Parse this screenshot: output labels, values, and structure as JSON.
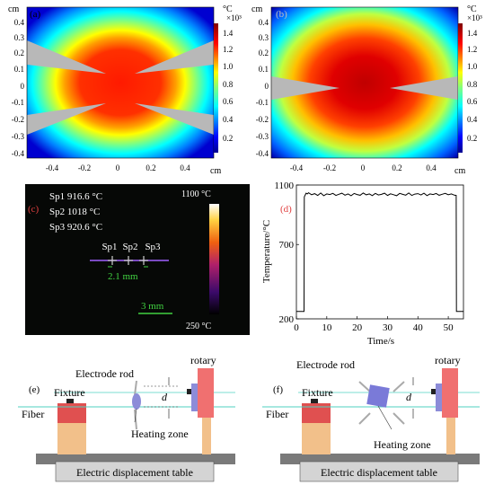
{
  "panel_a": {
    "tag": "(a)",
    "unit_y": "cm",
    "unit_x": "cm",
    "yticks": [
      "0.4",
      "0.3",
      "0.2",
      "0.1",
      "0",
      "-0.1",
      "-0.2",
      "-0.3",
      "-0.4"
    ],
    "xticks": [
      "-0.4",
      "-0.2",
      "0",
      "0.2",
      "0.4"
    ],
    "cbar_unit": "°C",
    "cbar_scale": "×10³",
    "cbar_ticks": [
      "1.4",
      "1.2",
      "1.0",
      "0.8",
      "0.6",
      "0.4",
      "0.2"
    ]
  },
  "panel_b": {
    "tag": "(b)",
    "unit_y": "cm",
    "unit_x": "cm",
    "yticks": [
      "0.4",
      "0.3",
      "0.2",
      "0.1",
      "0",
      "-0.1",
      "-0.2",
      "-0.3",
      "-0.4"
    ],
    "xticks": [
      "-0.4",
      "-0.2",
      "0",
      "0.2",
      "0.4"
    ],
    "cbar_unit": "°C",
    "cbar_scale": "×10³",
    "cbar_ticks": [
      "1.4",
      "1.2",
      "1.0",
      "0.8",
      "0.6",
      "0.4",
      "0.2"
    ]
  },
  "panel_c": {
    "tag": "(c)",
    "readings": [
      "Sp1 916.6 °C",
      "Sp2 1018 °C",
      "Sp3 920.6 °C"
    ],
    "spots": [
      "Sp1",
      "Sp2",
      "Sp3"
    ],
    "spot_distance": "2.1 mm",
    "scalebar": "3 mm",
    "cbar_max": "1100 °C",
    "cbar_min": "250 °C"
  },
  "panel_d": {
    "tag": "(d)",
    "chart_data": {
      "type": "line",
      "xlabel": "Time/s",
      "ylabel": "Temperature/°C",
      "xlim": [
        0,
        55
      ],
      "ylim": [
        200,
        1100
      ],
      "xticks": [
        0,
        10,
        20,
        30,
        40,
        50
      ],
      "yticks": [
        200,
        700,
        1100
      ],
      "x": [
        0,
        2.5,
        2.6,
        3.2,
        3.6,
        4,
        5,
        6,
        7,
        8,
        9,
        10,
        11,
        12,
        13,
        14,
        15,
        16,
        17,
        18,
        19,
        20,
        21,
        22,
        23,
        24,
        25,
        26,
        27,
        28,
        29,
        30,
        31,
        32,
        33,
        34,
        35,
        36,
        37,
        38,
        39,
        40,
        41,
        42,
        43,
        44,
        45,
        46,
        47,
        48,
        49,
        50,
        51,
        52,
        52.6,
        52.7,
        55
      ],
      "y": [
        250,
        250,
        1020,
        1045,
        1040,
        1048,
        1035,
        1042,
        1030,
        1046,
        1028,
        1040,
        1036,
        1044,
        1030,
        1038,
        1045,
        1032,
        1040,
        1028,
        1043,
        1036,
        1031,
        1046,
        1034,
        1040,
        1029,
        1044,
        1033,
        1037,
        1045,
        1030,
        1041,
        1035,
        1028,
        1044,
        1037,
        1032,
        1046,
        1030,
        1039,
        1042,
        1033,
        1045,
        1029,
        1040,
        1036,
        1043,
        1031,
        1038,
        1044,
        1035,
        1040,
        1032,
        1030,
        250,
        250
      ]
    }
  },
  "panel_e": {
    "tag": "(e)",
    "electrode_label": "Electrode rod",
    "fixture_label": "Fixture",
    "fiber_label": "Fiber",
    "heating_label": "Heating zone",
    "rotary_label": "rotary",
    "d_label": "d",
    "table_label": "Electric displacement table"
  },
  "panel_f": {
    "tag": "(f)",
    "electrode_label": "Electrode rod",
    "fixture_label": "Fixture",
    "fiber_label": "Fiber",
    "heating_label": "Heating zone",
    "rotary_label": "rotary",
    "d_label": "d",
    "table_label": "Electric displacement table"
  },
  "colors": {
    "fiber": "#4fd0c0",
    "fixture_red": "#e05050",
    "fixture_base": "#f2c08a",
    "rotary_red": "#f07070",
    "rotary_blue": "#8c8cd8",
    "table_gray": "#7a7a7a"
  }
}
